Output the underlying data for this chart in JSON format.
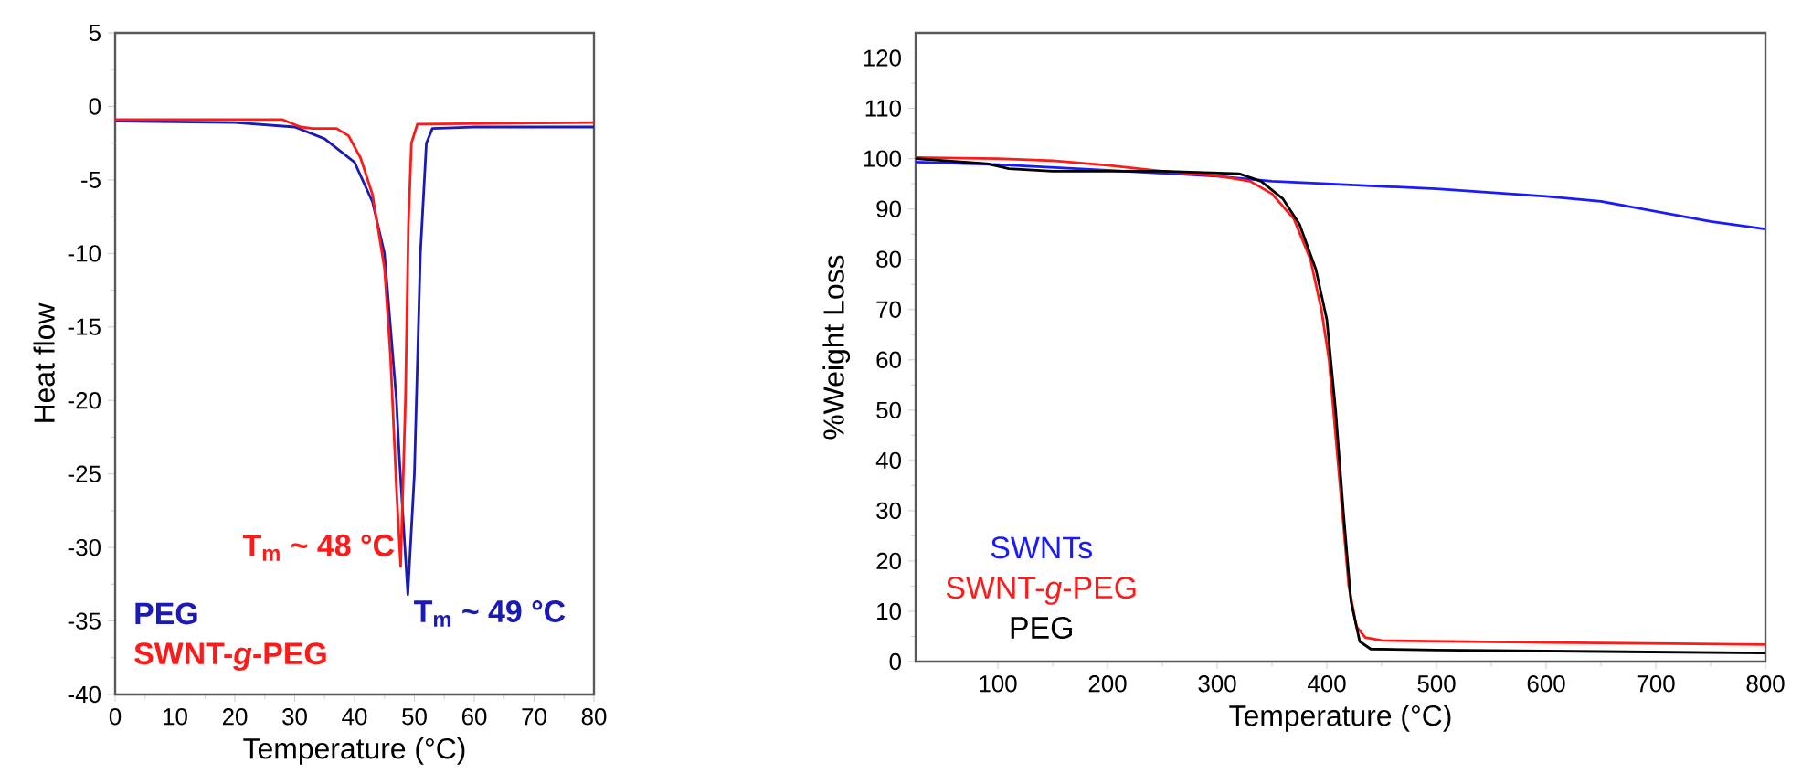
{
  "chart_data": [
    {
      "type": "line",
      "xlabel": "Temperature (°C)",
      "ylabel": "Heat flow",
      "xlim": [
        0,
        80
      ],
      "xticks": [
        0,
        10,
        20,
        30,
        40,
        50,
        60,
        70,
        80
      ],
      "ylim": [
        -40,
        5
      ],
      "yticks": [
        -40,
        -35,
        -30,
        -25,
        -20,
        -15,
        -10,
        -5,
        0,
        5
      ],
      "legend": "bottom left",
      "annotations": [
        {
          "text": "T$_{m}$ ~ 48 °C",
          "x": 47.7,
          "y": -31.3
        },
        {
          "text": "T$_{m}$ ~ 49 °C",
          "x": 48.9,
          "y": -33.2
        }
      ],
      "series": [
        {
          "name": "PEG",
          "color": "#1a1ab8",
          "x": [
            0,
            20,
            30,
            35,
            40,
            43,
            45,
            47,
            47.5,
            48.9,
            50,
            51,
            52,
            53,
            60,
            80
          ],
          "values": [
            -1,
            -1.1,
            -1.4,
            -2.2,
            -3.8,
            -6.5,
            -10,
            -20,
            -24,
            -33.2,
            -25,
            -10,
            -2.5,
            -1.5,
            -1.4,
            -1.4
          ]
        },
        {
          "name": "SWNT-*g*-PEG",
          "color": "#ff1a1a",
          "x": [
            0,
            28,
            31,
            33,
            37,
            39,
            41,
            43,
            45,
            46,
            47,
            47.7,
            48.5,
            49,
            49.5,
            50.5,
            80
          ],
          "values": [
            -0.9,
            -0.9,
            -1.4,
            -1.5,
            -1.5,
            -2,
            -3.5,
            -6,
            -11,
            -17,
            -26,
            -31.3,
            -20,
            -8,
            -2.5,
            -1.2,
            -1.1
          ]
        }
      ]
    },
    {
      "type": "line",
      "xlabel": "Temperature (°C)",
      "ylabel": "%Weight Loss",
      "xlim": [
        25,
        800
      ],
      "xticks": [
        100,
        200,
        300,
        400,
        500,
        600,
        700,
        800
      ],
      "ylim": [
        0,
        125
      ],
      "yticks": [
        0,
        10,
        20,
        30,
        40,
        50,
        60,
        70,
        80,
        90,
        100,
        110,
        120
      ],
      "legend": "bottom left",
      "series": [
        {
          "name": "SWNTs",
          "color": "#1a1aff",
          "x": [
            25,
            100,
            200,
            300,
            350,
            400,
            500,
            600,
            650,
            700,
            750,
            800
          ],
          "values": [
            99.3,
            98.8,
            97.7,
            96.5,
            95.5,
            95,
            94,
            92.5,
            91.5,
            89.5,
            87.5,
            86
          ]
        },
        {
          "name": "SWNT-*g*-PEG",
          "color": "#ff1a1a",
          "x": [
            25,
            100,
            150,
            200,
            250,
            300,
            330,
            350,
            370,
            385,
            395,
            402,
            408,
            414,
            420,
            427,
            435,
            450,
            600,
            800
          ],
          "values": [
            100.2,
            100,
            99.6,
            98.7,
            97.5,
            96.6,
            95.5,
            93,
            88,
            80,
            70,
            60,
            45,
            30,
            15,
            7,
            4.8,
            4.2,
            3.8,
            3.4
          ]
        },
        {
          "name": "PEG",
          "color": "#000000",
          "x": [
            25,
            90,
            110,
            150,
            250,
            320,
            340,
            360,
            375,
            390,
            400,
            408,
            415,
            422,
            430,
            440,
            500,
            800
          ],
          "values": [
            100,
            99,
            98,
            97.5,
            97.5,
            97,
            95.5,
            92,
            87,
            78,
            68,
            50,
            30,
            12,
            4,
            2.5,
            2.3,
            1.7
          ]
        }
      ]
    }
  ]
}
